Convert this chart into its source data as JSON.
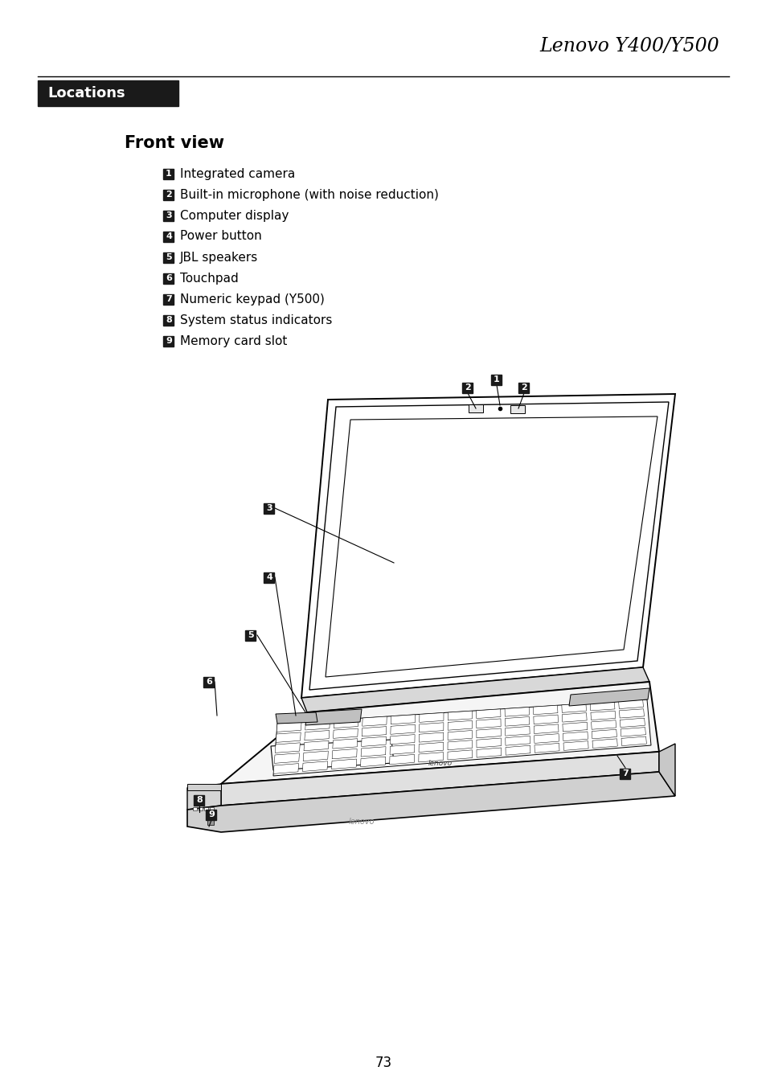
{
  "title_italic": "Lenovo Y400/Y500",
  "section_title": "Locations",
  "subsection_title": "Front view",
  "items": [
    {
      "num": "1",
      "text": "Integrated camera"
    },
    {
      "num": "2",
      "text": "Built-in microphone (with noise reduction)"
    },
    {
      "num": "3",
      "text": "Computer display"
    },
    {
      "num": "4",
      "text": "Power button"
    },
    {
      "num": "5",
      "text": "JBL speakers"
    },
    {
      "num": "6",
      "text": "Touchpad"
    },
    {
      "num": "7",
      "text": "Numeric keypad (Y500)"
    },
    {
      "num": "8",
      "text": "System status indicators"
    },
    {
      "num": "9",
      "text": "Memory card slot"
    }
  ],
  "page_number": "73",
  "bg_color": "#ffffff",
  "text_color": "#000000",
  "badge_bg": "#1a1a1a",
  "badge_fg": "#ffffff"
}
